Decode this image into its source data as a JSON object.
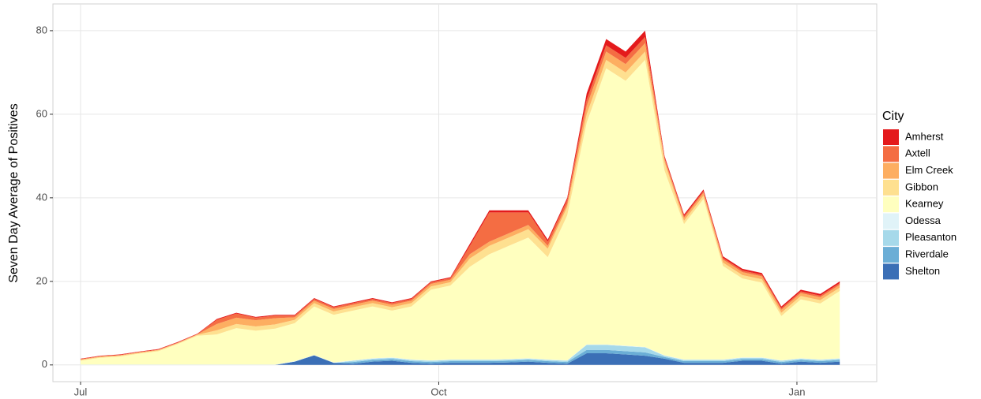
{
  "chart_data": {
    "type": "stacked-area",
    "y_label": "Seven Day Average of Positives",
    "legend_title": "City",
    "legend": "right",
    "grid": true,
    "x": [
      0,
      5,
      10,
      15,
      20,
      25,
      30,
      35,
      40,
      45,
      50,
      55,
      60,
      65,
      70,
      75,
      80,
      85,
      90,
      95,
      100,
      105,
      110,
      115,
      120,
      125,
      130,
      135,
      140,
      145,
      150,
      155,
      160,
      165,
      170,
      175,
      180,
      185,
      190,
      195
    ],
    "xlim": [
      -7.1,
      204.5
    ],
    "xticks": [
      {
        "value": 0,
        "label": "Jul"
      },
      {
        "value": 92,
        "label": "Oct"
      },
      {
        "value": 184,
        "label": "Jan"
      }
    ],
    "ylim": [
      -4,
      86.4
    ],
    "yticks": [
      0,
      20,
      40,
      60,
      80
    ],
    "series": [
      {
        "name": "Shelton",
        "color": "#3b6fb6",
        "values": [
          0,
          0,
          0,
          0,
          0,
          0,
          0,
          0,
          0,
          0,
          0,
          0.8,
          2.3,
          0.5,
          0.3,
          0.8,
          1,
          0.5,
          0.3,
          0.5,
          0.5,
          0.5,
          0.6,
          0.8,
          0.5,
          0.3,
          2.8,
          2.8,
          2.5,
          2.2,
          1.5,
          0.5,
          0.5,
          0.5,
          1,
          1,
          0.3,
          0.8,
          0.5,
          0.8
        ]
      },
      {
        "name": "Riverdale",
        "color": "#6baed6",
        "values": [
          0,
          0,
          0,
          0,
          0,
          0,
          0,
          0,
          0,
          0,
          0,
          0,
          0,
          0,
          0.4,
          0.4,
          0.4,
          0.4,
          0.4,
          0.4,
          0.4,
          0.4,
          0.4,
          0.4,
          0.4,
          0.4,
          0.8,
          0.8,
          0.8,
          0.8,
          0.4,
          0.4,
          0.4,
          0.4,
          0.4,
          0.4,
          0.4,
          0.4,
          0.4,
          0.4
        ]
      },
      {
        "name": "Pleasanton",
        "color": "#a6d9ea",
        "values": [
          0,
          0,
          0,
          0,
          0,
          0,
          0,
          0,
          0,
          0,
          0,
          0,
          0,
          0,
          0.3,
          0.3,
          0.3,
          0.3,
          0.3,
          0.3,
          0.3,
          0.3,
          0.3,
          0.3,
          0.3,
          0.3,
          1.2,
          1.2,
          1.2,
          1.2,
          0.3,
          0.3,
          0.3,
          0.3,
          0.3,
          0.3,
          0.3,
          0.3,
          0.3,
          0.3
        ]
      },
      {
        "name": "Odessa",
        "color": "#e0f3f8",
        "values": [
          0.1,
          0.1,
          0.1,
          0.1,
          0.1,
          0.1,
          0.1,
          0.1,
          0.1,
          0.1,
          0.1,
          0.1,
          0.1,
          0.1,
          0.1,
          0.1,
          0.1,
          0.1,
          0.1,
          0.1,
          0.1,
          0.1,
          0.1,
          0.1,
          0.1,
          0.1,
          0.1,
          0.1,
          0.1,
          0.1,
          0.1,
          0.1,
          0.1,
          0.1,
          0.1,
          0.1,
          0.1,
          0.1,
          0.1,
          0.1
        ]
      },
      {
        "name": "Kearney",
        "color": "#ffffbf",
        "values": [
          0.9,
          1.6,
          1.9,
          2.6,
          3.2,
          4.9,
          6.9,
          7.2,
          8.7,
          8.1,
          8.6,
          9.1,
          11.6,
          11.4,
          11.9,
          12.4,
          11.2,
          12.7,
          16.9,
          17.7,
          22.2,
          25.2,
          27.1,
          28.9,
          24.5,
          34.7,
          53.1,
          66.1,
          63.4,
          68.7,
          44.2,
          32.4,
          38.4,
          22.4,
          18.9,
          17.9,
          10.6,
          14.1,
          13.4,
          16.1
        ]
      },
      {
        "name": "Gibbon",
        "color": "#fee090",
        "values": [
          0.2,
          0.2,
          0.2,
          0.2,
          0.2,
          0.2,
          0.2,
          1,
          1,
          1,
          1,
          0.8,
          0.8,
          0.8,
          0.8,
          0.8,
          0.8,
          0.8,
          0.8,
          0.8,
          2,
          2,
          2,
          2,
          2,
          2,
          2,
          2,
          2,
          2,
          2,
          0.8,
          0.8,
          0.8,
          0.8,
          0.8,
          0.8,
          0.8,
          0.8,
          0.8
        ]
      },
      {
        "name": "Elm Creek",
        "color": "#fdae61",
        "values": [
          0.1,
          0.1,
          0.1,
          0.1,
          0.1,
          0.1,
          0.1,
          1.5,
          1.5,
          1.5,
          1.5,
          0.6,
          0.6,
          0.6,
          0.6,
          0.6,
          0.6,
          0.6,
          0.6,
          0.6,
          1,
          1,
          1,
          1,
          0.7,
          0.7,
          2,
          2,
          2,
          2,
          0.7,
          0.7,
          0.7,
          0.7,
          0.7,
          0.7,
          0.7,
          0.7,
          0.7,
          0.7
        ]
      },
      {
        "name": "Axtell",
        "color": "#f46d43",
        "values": [
          0.1,
          0.1,
          0.1,
          0.1,
          0.1,
          0.1,
          0.1,
          1,
          1,
          0.6,
          0.6,
          0.4,
          0.4,
          0.4,
          0.4,
          0.4,
          0.4,
          0.4,
          0.4,
          0.4,
          2,
          7,
          5,
          3,
          1,
          1,
          1.5,
          1.5,
          1.5,
          1.5,
          0.4,
          0.4,
          0.4,
          0.4,
          0.4,
          0.4,
          0.4,
          0.4,
          0.4,
          0.4
        ]
      },
      {
        "name": "Amherst",
        "color": "#e41a1c",
        "values": [
          0.1,
          0.1,
          0.1,
          0.1,
          0.1,
          0.1,
          0.1,
          0.2,
          0.2,
          0.2,
          0.2,
          0.2,
          0.2,
          0.2,
          0.2,
          0.2,
          0.2,
          0.2,
          0.2,
          0.2,
          0.5,
          0.5,
          0.5,
          0.5,
          0.5,
          0.5,
          1.5,
          1.5,
          1.5,
          1.5,
          0.4,
          0.4,
          0.4,
          0.4,
          0.4,
          0.4,
          0.4,
          0.4,
          0.4,
          0.4
        ]
      }
    ]
  }
}
